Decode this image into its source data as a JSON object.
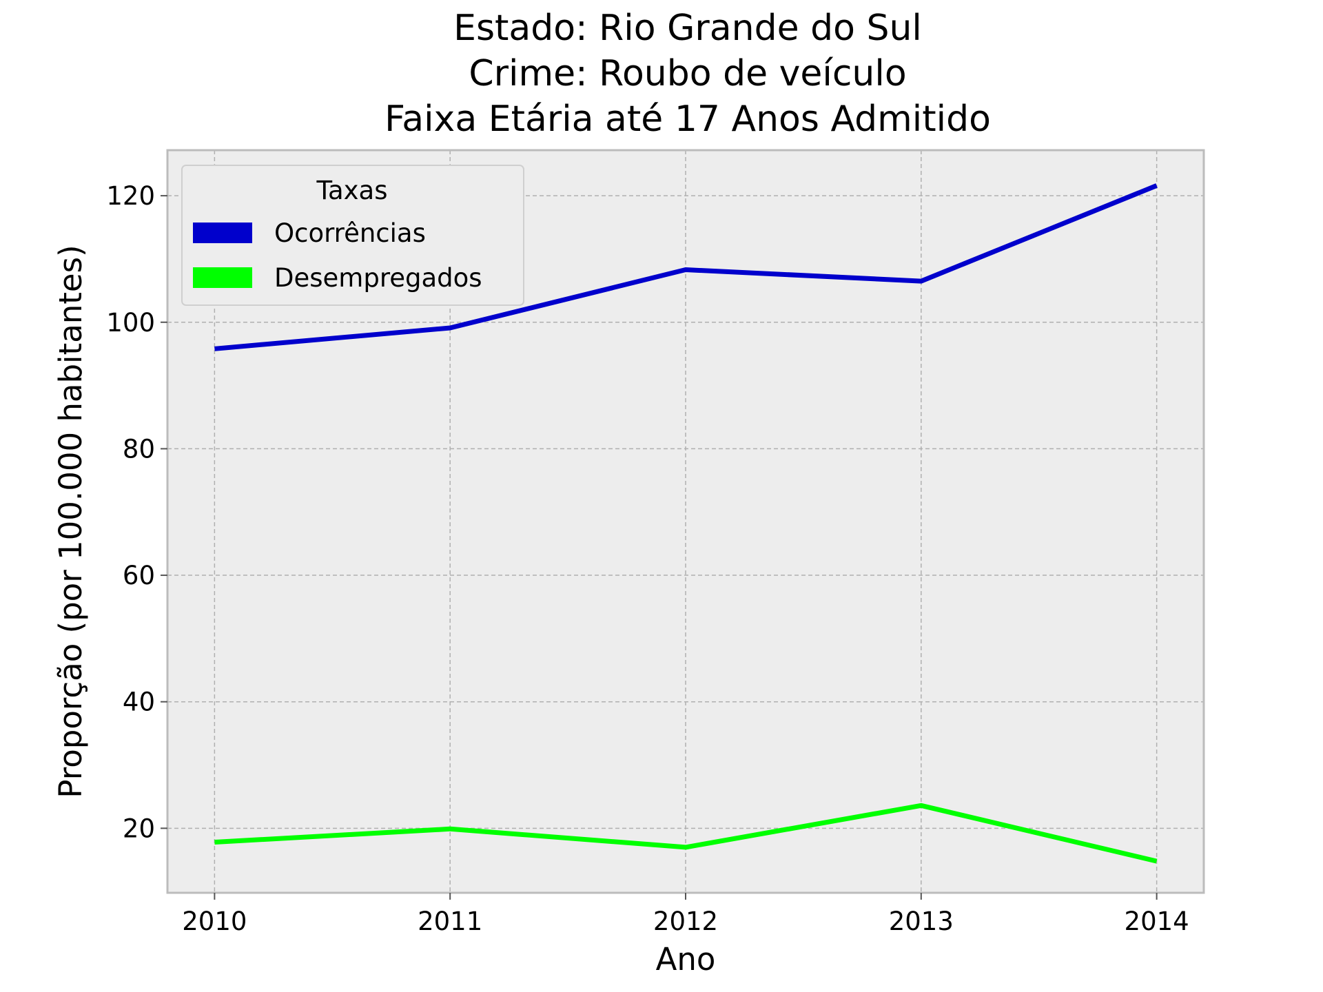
{
  "chart_data": {
    "type": "line",
    "title_lines": [
      "Estado: Rio Grande do Sul",
      "Crime: Roubo de veículo",
      "Faixa Etária até 17 Anos   Admitido"
    ],
    "xlabel": "Ano",
    "ylabel": "Proporção (por 100.000 habitantes)",
    "x": [
      2010,
      2011,
      2012,
      2013,
      2014
    ],
    "x_tick_labels": [
      "2010",
      "2011",
      "2012",
      "2013",
      "2014"
    ],
    "y_ticks": [
      20,
      40,
      60,
      80,
      100,
      120
    ],
    "y_tick_labels": [
      "20",
      "40",
      "60",
      "80",
      "100",
      "120"
    ],
    "xlim": [
      2009.8,
      2014.2
    ],
    "ylim": [
      9.8,
      127.2
    ],
    "grid": true,
    "legend": {
      "title": "Taxas",
      "placement": "top-left"
    },
    "series": [
      {
        "name": "Ocorrências",
        "color": "#0000cc",
        "values": [
          95.8,
          99.1,
          108.3,
          106.5,
          121.6
        ]
      },
      {
        "name": "Desempregados",
        "color": "#00ff00",
        "values": [
          17.8,
          19.9,
          17.0,
          23.6,
          14.8
        ]
      }
    ],
    "colors": {
      "background": "#ededed",
      "grid": "#b0b0b0",
      "frame": "#bcbcbc"
    }
  }
}
